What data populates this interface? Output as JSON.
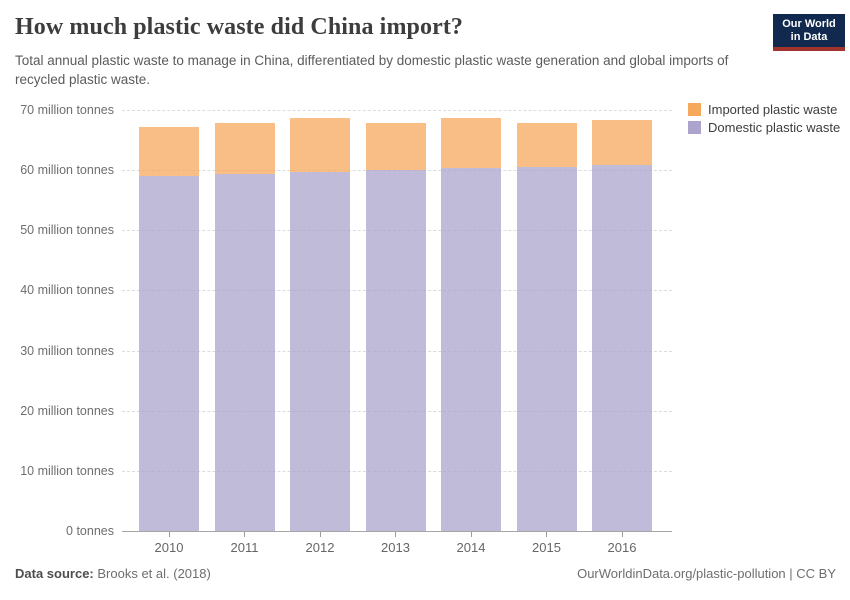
{
  "header": {
    "title": "How much plastic waste did China import?",
    "subtitle": "Total annual plastic waste to manage in China, differentiated by domestic plastic waste generation and global imports of recycled plastic waste.",
    "logo": {
      "line1": "Our World",
      "line2": "in Data",
      "bg_color": "#12294f",
      "stripe_color": "#a0342c"
    }
  },
  "chart_data": {
    "type": "bar",
    "stacked": true,
    "title": "How much plastic waste did China import?",
    "categories": [
      "2010",
      "2011",
      "2012",
      "2013",
      "2014",
      "2015",
      "2016"
    ],
    "series": [
      {
        "name": "Imported plastic waste",
        "color": "#f6a85c",
        "values": [
          8.0,
          8.4,
          8.9,
          7.9,
          8.3,
          7.3,
          7.4
        ]
      },
      {
        "name": "Domestic plastic waste",
        "color": "#aca4cd",
        "values": [
          59.1,
          59.4,
          59.7,
          60.0,
          60.3,
          60.6,
          60.9
        ]
      }
    ],
    "unit": "million tonnes",
    "ylim": [
      0,
      70
    ],
    "y_ticks": [
      {
        "value": 0,
        "label": "0 tonnes"
      },
      {
        "value": 10,
        "label": "10 million tonnes"
      },
      {
        "value": 20,
        "label": "20 million tonnes"
      },
      {
        "value": 30,
        "label": "30 million tonnes"
      },
      {
        "value": 40,
        "label": "40 million tonnes"
      },
      {
        "value": 50,
        "label": "50 million tonnes"
      },
      {
        "value": 60,
        "label": "60 million tonnes"
      },
      {
        "value": 70,
        "label": "70 million tonnes"
      }
    ],
    "grid": "horizontal-dashed",
    "legend_position": "top-right"
  },
  "footer": {
    "source_label": "Data source:",
    "source_value": "Brooks et al. (2018)",
    "rights": "OurWorldinData.org/plastic-pollution | CC BY"
  }
}
